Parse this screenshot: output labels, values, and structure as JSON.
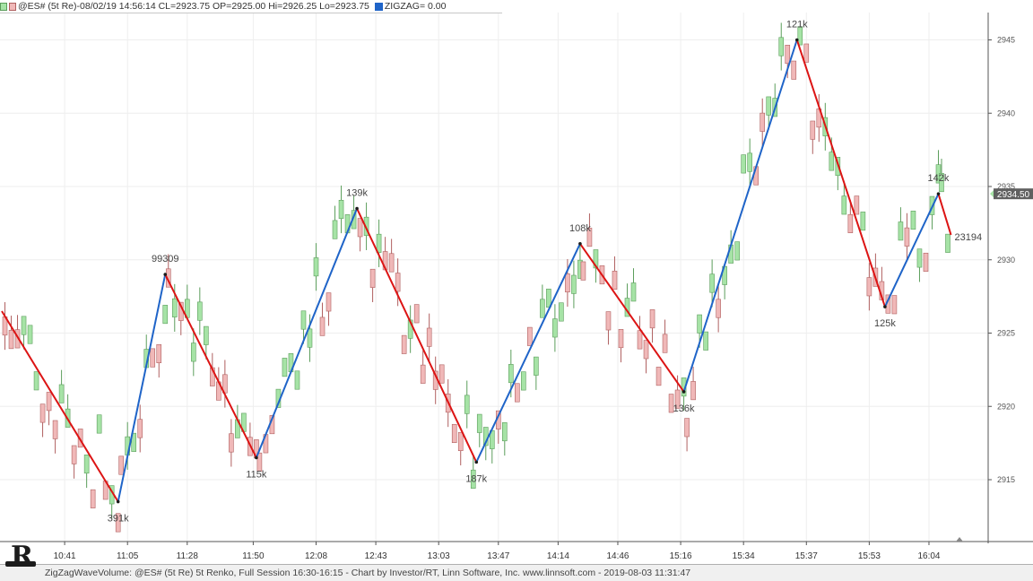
{
  "header": {
    "series_label": "@ES# (5t Re)-08/02/19 14:56:14 CL=2923.75 OP=2925.00 Hi=2926.25 Lo=2923.75",
    "indicator_label": "ZIGZAG= 0.00"
  },
  "price_tag": "2934.50",
  "footer": {
    "text": "ZigZagWaveVolume: @ES# (5t Re) 5t Renko, Full Session 16:30-16:15 - Chart by Investor/RT, Linn Software, Inc. www.linnsoft.com - 2019-08-03 11:31:47"
  },
  "colors": {
    "up_fill": "#a6e3a6",
    "up_edge": "#5c9e5c",
    "down_fill": "#f0b8b8",
    "down_edge": "#b06060",
    "zigzag_up": "#1f64c8",
    "zigzag_down": "#dc1414",
    "grid": "#eeeeee",
    "price_tag_bg": "#606060"
  },
  "chart_data": {
    "type": "line",
    "chart_kind": "renko",
    "brick_size": 1.25,
    "y_axis_side": "right",
    "ylim": [
      2911.5,
      2948.5
    ],
    "yticks": [
      2915,
      2920,
      2925,
      2930,
      2935,
      2940,
      2945
    ],
    "xlim": [
      0,
      152
    ],
    "grid": true,
    "xticks": [
      {
        "bar": 10,
        "label": "10:41"
      },
      {
        "bar": 20,
        "label": "11:05"
      },
      {
        "bar": 29.5,
        "label": "11:28"
      },
      {
        "bar": 40,
        "label": "11:50"
      },
      {
        "bar": 50,
        "label": "12:08"
      },
      {
        "bar": 59.5,
        "label": "12:43"
      },
      {
        "bar": 69.5,
        "label": "13:03"
      },
      {
        "bar": 79,
        "label": "13:47"
      },
      {
        "bar": 88.5,
        "label": "14:14"
      },
      {
        "bar": 98,
        "label": "14:46"
      },
      {
        "bar": 108,
        "label": "15:16"
      },
      {
        "bar": 118,
        "label": "15:34"
      },
      {
        "bar": 128,
        "label": "15:37"
      },
      {
        "bar": 138,
        "label": "15:53"
      },
      {
        "bar": 147.5,
        "label": "16:04"
      }
    ],
    "zigzag": [
      {
        "bar": 0,
        "price": 2926.5,
        "label": ""
      },
      {
        "bar": 18.5,
        "price": 2913.5,
        "label": "391k"
      },
      {
        "bar": 26,
        "price": 2929.0,
        "label": "99309"
      },
      {
        "bar": 40.5,
        "price": 2916.5,
        "label": "115k"
      },
      {
        "bar": 56.5,
        "price": 2933.5,
        "label": "139k"
      },
      {
        "bar": 75.5,
        "price": 2916.2,
        "label": "187k"
      },
      {
        "bar": 92,
        "price": 2931.1,
        "label": "108k"
      },
      {
        "bar": 108.5,
        "price": 2921.0,
        "label": "136k"
      },
      {
        "bar": 126.5,
        "price": 2945.0,
        "label": "121k"
      },
      {
        "bar": 140.5,
        "price": 2926.8,
        "label": "125k"
      },
      {
        "bar": 149,
        "price": 2934.5,
        "label": "142k"
      },
      {
        "bar": 151,
        "price": 2931.7,
        "label": "23194"
      }
    ]
  }
}
